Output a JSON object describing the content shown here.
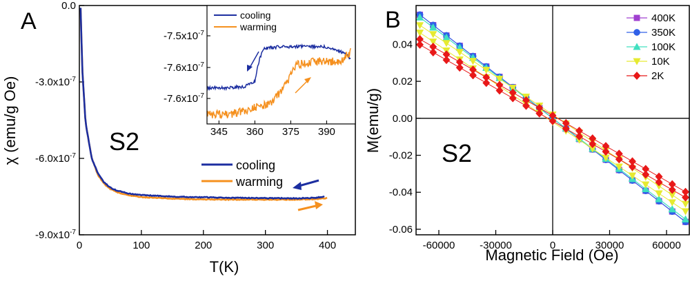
{
  "colors": {
    "cooling": "#1c2ea0",
    "warming": "#f5901e",
    "s400K": "#a040d0",
    "s350K": "#3060e8",
    "s100K": "#40e0c0",
    "s10K": "#e6ea30",
    "s2K": "#e81818"
  },
  "chart_data": [
    {
      "panel": "A",
      "type": "line",
      "xlabel": "T(K)",
      "ylabel": "χ (emu/g Oe)",
      "xlim": [
        0,
        445
      ],
      "ylim": [
        -9e-07,
        0
      ],
      "x_ticks": [
        "0",
        "100",
        "200",
        "300",
        "400"
      ],
      "y_ticks": [
        "0.0",
        "-3.0x10-7",
        "-6.0x10-7",
        "-9.0x10-7"
      ],
      "sample_label": "S2",
      "series": [
        {
          "name": "cooling",
          "color_key": "cooling",
          "x": [
            2,
            5,
            10,
            20,
            30,
            40,
            50,
            60,
            80,
            100,
            150,
            200,
            250,
            300,
            350,
            380,
            395
          ],
          "y": [
            -1e-08,
            -2.6e-07,
            -4.6e-07,
            -6e-07,
            -6.6e-07,
            -6.95e-07,
            -7.15e-07,
            -7.26e-07,
            -7.38e-07,
            -7.44e-07,
            -7.5e-07,
            -7.53e-07,
            -7.55e-07,
            -7.56e-07,
            -7.57e-07,
            -7.55e-07,
            -7.5e-07
          ]
        },
        {
          "name": "warming",
          "color_key": "warming",
          "x": [
            2,
            5,
            10,
            20,
            30,
            40,
            50,
            60,
            80,
            100,
            150,
            200,
            250,
            300,
            350,
            380,
            400
          ],
          "y": [
            -1e-08,
            -2.6e-07,
            -4.6e-07,
            -6e-07,
            -6.65e-07,
            -7e-07,
            -7.2e-07,
            -7.32e-07,
            -7.45e-07,
            -7.52e-07,
            -7.58e-07,
            -7.61e-07,
            -7.62e-07,
            -7.62e-07,
            -7.62e-07,
            -7.6e-07,
            -7.56e-07
          ]
        }
      ],
      "inset": {
        "xlim": [
          340,
          402
        ],
        "x_ticks": [
          "345",
          "360",
          "375",
          "390"
        ],
        "y_ticks": [
          "-7.5x10-7",
          "-7.6x10-7",
          "-7.6x10-7"
        ],
        "series": [
          {
            "name": "cooling",
            "color_key": "cooling",
            "x": [
              340,
              350,
              356,
              360,
              362,
              364,
              370,
              380,
              390,
              396,
              400
            ],
            "y": [
              -7.585e-07,
              -7.585e-07,
              -7.583e-07,
              -7.575e-07,
              -7.54e-07,
              -7.525e-07,
              -7.523e-07,
              -7.522e-07,
              -7.523e-07,
              -7.53e-07,
              -7.54e-07
            ]
          },
          {
            "name": "warming",
            "color_key": "warming",
            "x": [
              340,
              350,
              360,
              366,
              370,
              374,
              376,
              378,
              380,
              385,
              390,
              396,
              400
            ],
            "y": [
              -7.625e-07,
              -7.625e-07,
              -7.615e-07,
              -7.61e-07,
              -7.595e-07,
              -7.575e-07,
              -7.555e-07,
              -7.55e-07,
              -7.548e-07,
              -7.545e-07,
              -7.545e-07,
              -7.545e-07,
              -7.53e-07
            ]
          }
        ]
      }
    },
    {
      "panel": "B",
      "type": "line",
      "xlabel": "Magnetic Field (Oe)",
      "ylabel": "M(emu/g)",
      "xlim": [
        -72000,
        72000
      ],
      "ylim": [
        -0.063,
        0.061
      ],
      "x_ticks": [
        "-60000",
        "-30000",
        "0",
        "30000",
        "60000"
      ],
      "y_ticks": [
        "0.04",
        "0.02",
        "0.00",
        "-0.02",
        "-0.04",
        "-0.06"
      ],
      "sample_label": "S2",
      "series": [
        {
          "name": "400K",
          "color_key": "s400K",
          "marker": "square",
          "slope": -8e-07,
          "hyst": 0
        },
        {
          "name": "350K",
          "color_key": "s350K",
          "marker": "circle",
          "slope": -8e-07,
          "hyst": 0
        },
        {
          "name": "100K",
          "color_key": "s100K",
          "marker": "triangle-up",
          "slope": -7.8e-07,
          "hyst": 0
        },
        {
          "name": "10K",
          "color_key": "s10K",
          "marker": "triangle-down",
          "slope": -6.9e-07,
          "hyst": 0.002
        },
        {
          "name": "2K",
          "color_key": "s2K",
          "marker": "diamond",
          "slope": -5.9e-07,
          "hyst": 0.0015
        }
      ]
    }
  ]
}
